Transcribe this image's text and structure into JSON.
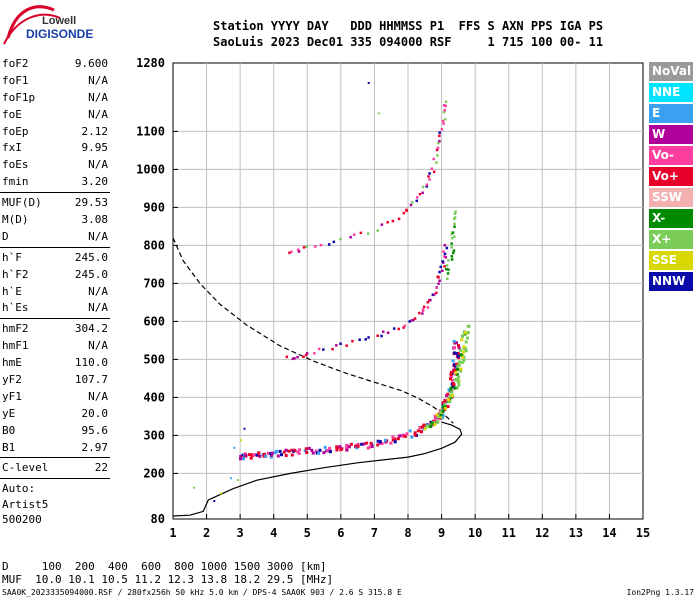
{
  "logo": {
    "line1": "Lowell",
    "line2": "DIGISONDE"
  },
  "header": {
    "labels_row": "Station YYYY DAY   DDD HHMMSS P1  FFS S AXN PPS IGA PS",
    "values_row": "SaoLuis 2023 Dec01 335 094000 RSF     1 715 100 00- 11"
  },
  "params_group1": [
    {
      "name": "foF2",
      "value": "9.600"
    },
    {
      "name": "foF1",
      "value": "N/A"
    },
    {
      "name": "foF1p",
      "value": "N/A"
    },
    {
      "name": "foE",
      "value": "N/A"
    },
    {
      "name": "foEp",
      "value": "2.12"
    },
    {
      "name": "fxI",
      "value": "9.95"
    },
    {
      "name": "foEs",
      "value": "N/A"
    },
    {
      "name": "fmin",
      "value": "3.20"
    }
  ],
  "params_group2": [
    {
      "name": "MUF(D)",
      "value": "29.53"
    },
    {
      "name": "M(D)",
      "value": "3.08"
    },
    {
      "name": "D",
      "value": "N/A"
    }
  ],
  "params_group3": [
    {
      "name": "h`F",
      "value": "245.0"
    },
    {
      "name": "h`F2",
      "value": "245.0"
    },
    {
      "name": "h`E",
      "value": "N/A"
    },
    {
      "name": "h`Es",
      "value": "N/A"
    }
  ],
  "params_group4": [
    {
      "name": "hmF2",
      "value": "304.2"
    },
    {
      "name": "hmF1",
      "value": "N/A"
    },
    {
      "name": "hmE",
      "value": "110.0"
    },
    {
      "name": "yF2",
      "value": "107.7"
    },
    {
      "name": "yF1",
      "value": "N/A"
    },
    {
      "name": "yE",
      "value": "20.0"
    },
    {
      "name": "B0",
      "value": "95.6"
    },
    {
      "name": "B1",
      "value": "2.97"
    }
  ],
  "params_group5": [
    {
      "name": "C-level",
      "value": "22"
    }
  ],
  "auto": {
    "label": "Auto:",
    "artist": "Artist5",
    "code": "500200"
  },
  "legend": [
    {
      "name": "NoVal",
      "color": "#9a9a9a"
    },
    {
      "name": "NNE",
      "color": "#00e5ff"
    },
    {
      "name": "E",
      "color": "#3aa0f0"
    },
    {
      "name": "W",
      "color": "#b0009a"
    },
    {
      "name": "Vo-",
      "color": "#ff3fa0"
    },
    {
      "name": "Vo+",
      "color": "#e8002a"
    },
    {
      "name": "SSW",
      "color": "#f4b0b0"
    },
    {
      "name": "X-",
      "color": "#008a00"
    },
    {
      "name": "X+",
      "color": "#7ccc5a"
    },
    {
      "name": "SSE",
      "color": "#d8d800"
    },
    {
      "name": "NNW",
      "color": "#0a0aa8"
    }
  ],
  "dtable": {
    "row1": "D     100  200  400  600  800 1000 1500 3000 [km]",
    "row2": "MUF  10.0 10.1 10.5 11.2 12.3 13.8 18.2 29.5 [MHz]"
  },
  "footer": {
    "left": "SAA0K_2023335094000.RSF / 280fx256h 50 kHz 5.0 km / DPS-4 SAA0K 903 / 2.6 S 315.8 E",
    "right": "Ion2Png 1.3.17"
  },
  "chart_data": {
    "type": "scatter",
    "xlim": [
      1,
      15
    ],
    "ylim": [
      80,
      1280
    ],
    "x_ticks": [
      1,
      2,
      3,
      4,
      5,
      6,
      7,
      8,
      9,
      10,
      11,
      12,
      13,
      14,
      15
    ],
    "y_ticks": [
      80,
      200,
      300,
      400,
      500,
      600,
      700,
      800,
      900,
      1000,
      1100,
      1280
    ],
    "grid": true,
    "legend_position": "right",
    "profile_curve": {
      "x": [
        1.0,
        1.5,
        1.9,
        2.05,
        2.3,
        2.8,
        3.5,
        4.5,
        5.5,
        6.5,
        7.5,
        8.0,
        8.5,
        9.0,
        9.4,
        9.6,
        9.55,
        9.3,
        9.0
      ],
      "y": [
        88,
        90,
        100,
        130,
        140,
        160,
        182,
        200,
        215,
        228,
        238,
        243,
        252,
        266,
        282,
        303,
        316,
        327,
        335
      ]
    },
    "muf_curve": {
      "x": [
        1.0,
        1.3,
        1.8,
        2.4,
        3.2,
        4.2,
        5.2,
        6.2,
        7.0,
        7.8,
        8.3,
        8.7,
        9.0,
        9.2,
        9.35
      ],
      "y": [
        820,
        760,
        700,
        645,
        590,
        535,
        495,
        462,
        440,
        418,
        398,
        378,
        360,
        345,
        332
      ]
    },
    "o_trace_1": {
      "x": [
        3.0,
        3.2,
        3.6,
        4.0,
        4.5,
        5.0,
        5.5,
        6.0,
        6.5,
        7.0,
        7.5,
        8.0,
        8.4,
        8.7,
        8.9,
        9.05,
        9.15,
        9.25,
        9.3,
        9.35,
        9.4,
        9.42
      ],
      "y": [
        248,
        250,
        252,
        255,
        258,
        262,
        266,
        270,
        275,
        282,
        292,
        305,
        320,
        338,
        355,
        375,
        400,
        430,
        460,
        490,
        520,
        550
      ]
    },
    "x_trace_1": {
      "x": [
        8.5,
        8.8,
        9.0,
        9.2,
        9.4,
        9.5,
        9.6,
        9.65,
        9.7
      ],
      "y": [
        320,
        345,
        370,
        400,
        440,
        480,
        520,
        560,
        590
      ]
    },
    "o_trace_2": {
      "x": [
        4.4,
        5.0,
        6.0,
        7.0,
        7.8,
        8.3,
        8.6,
        8.8,
        8.95,
        9.05,
        9.1
      ],
      "y": [
        505,
        520,
        540,
        565,
        590,
        620,
        650,
        690,
        730,
        770,
        810
      ]
    },
    "x_trace_2": {
      "x": [
        9.1,
        9.2,
        9.3,
        9.35
      ],
      "y": [
        720,
        760,
        800,
        850
      ]
    },
    "o_trace_3": {
      "x": [
        4.4,
        5.0,
        6.0,
        7.0,
        7.8,
        8.2,
        8.5,
        8.7,
        8.85,
        8.95,
        9.05,
        9.1
      ],
      "y": [
        785,
        795,
        815,
        845,
        885,
        920,
        960,
        1000,
        1050,
        1100,
        1150,
        1190
      ]
    },
    "x_trace_3": {
      "x": [
        9.3,
        9.35,
        9.4
      ],
      "y": [
        830,
        870,
        900
      ]
    },
    "low_echoes": {
      "x": [
        1.6,
        2.2,
        2.4,
        2.7,
        2.9,
        3.1,
        3.0,
        2.8,
        7.1,
        6.8
      ],
      "y": [
        165,
        130,
        150,
        190,
        185,
        320,
        290,
        270,
        1150,
        1230
      ]
    }
  }
}
